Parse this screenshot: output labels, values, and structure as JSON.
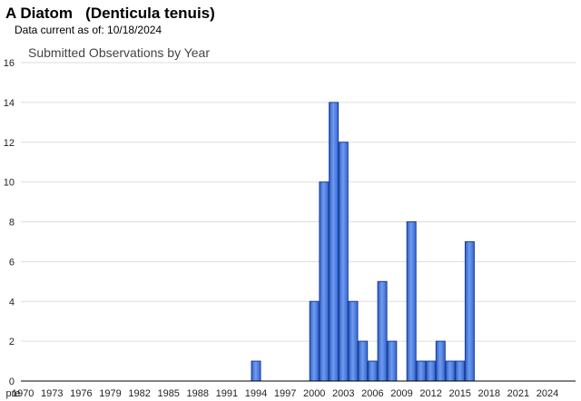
{
  "header": {
    "title": "A Diatom   (Denticula tenuis)",
    "data_current": "Data current as of: 10/18/2024"
  },
  "chart_data": {
    "type": "bar",
    "title": "Submitted Observations by Year",
    "xlabel": "",
    "ylabel": "",
    "ylim": [
      0,
      16
    ],
    "yticks": [
      0,
      2,
      4,
      6,
      8,
      10,
      12,
      14,
      16
    ],
    "grid": true,
    "categories": [
      "pre",
      "1970",
      "1971",
      "1972",
      "1973",
      "1974",
      "1975",
      "1976",
      "1977",
      "1978",
      "1979",
      "1980",
      "1981",
      "1982",
      "1983",
      "1984",
      "1985",
      "1986",
      "1987",
      "1988",
      "1989",
      "1990",
      "1991",
      "1992",
      "1993",
      "1994",
      "1995",
      "1996",
      "1997",
      "1998",
      "1999",
      "2000",
      "2001",
      "2002",
      "2003",
      "2004",
      "2005",
      "2006",
      "2007",
      "2008",
      "2009",
      "2010",
      "2011",
      "2012",
      "2013",
      "2014",
      "2015",
      "2016",
      "2017",
      "2018",
      "2019",
      "2020",
      "2021",
      "2022",
      "2023",
      "2024"
    ],
    "xtick_labels": [
      "pre",
      "1970",
      "1973",
      "1976",
      "1979",
      "1982",
      "1985",
      "1988",
      "1991",
      "1994",
      "1997",
      "2000",
      "2003",
      "2006",
      "2009",
      "2012",
      "2015",
      "2018",
      "2021",
      "2024"
    ],
    "values": [
      0,
      0,
      0,
      0,
      0,
      0,
      0,
      0,
      0,
      0,
      0,
      0,
      0,
      0,
      0,
      0,
      0,
      0,
      0,
      0,
      0,
      0,
      0,
      0,
      0,
      1,
      0,
      0,
      0,
      0,
      0,
      4,
      10,
      14,
      12,
      4,
      2,
      1,
      5,
      2,
      0,
      8,
      1,
      1,
      2,
      1,
      1,
      7,
      0,
      0,
      0,
      0,
      0,
      0,
      0,
      0
    ],
    "colors": {
      "bar_fill": "#4a7fe0",
      "bar_stroke": "#1a3d9a",
      "grid": "#dddddd",
      "axis": "#000000"
    }
  }
}
